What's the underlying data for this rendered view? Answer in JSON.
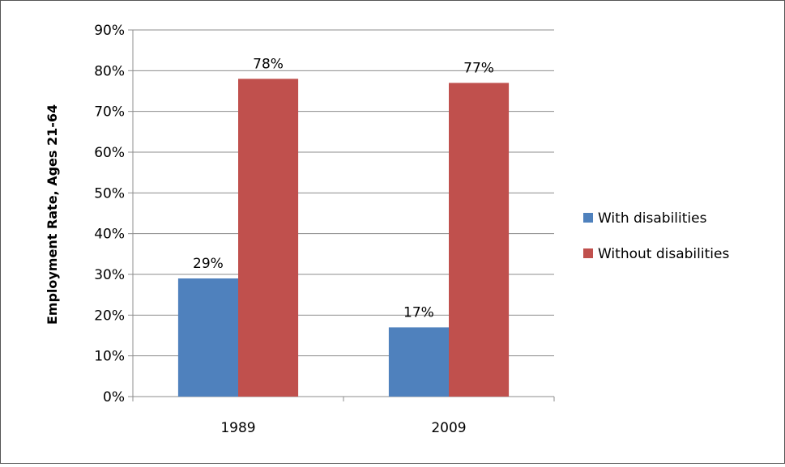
{
  "chart_data": {
    "type": "bar",
    "ylabel": "Employment Rate, Ages 21-64",
    "xlabel": "",
    "categories": [
      "1989",
      "2009"
    ],
    "series": [
      {
        "name": "With disabilities",
        "values": [
          29,
          17
        ],
        "labels": [
          "29%",
          "17%"
        ],
        "color": "#4F81BD"
      },
      {
        "name": "Without disabilities",
        "values": [
          78,
          77
        ],
        "labels": [
          "78%",
          "77%"
        ],
        "color": "#C0504D"
      }
    ],
    "ylim": [
      0,
      90
    ],
    "yticks": [
      0,
      10,
      20,
      30,
      40,
      50,
      60,
      70,
      80,
      90
    ],
    "ytick_labels": [
      "0%",
      "10%",
      "20%",
      "30%",
      "40%",
      "50%",
      "60%",
      "70%",
      "80%",
      "90%"
    ],
    "grid": true,
    "legend": "right"
  }
}
